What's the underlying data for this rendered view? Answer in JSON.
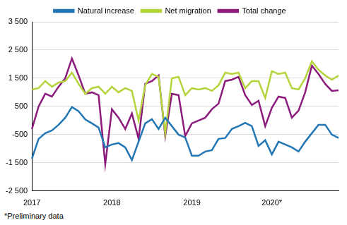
{
  "chart_data": {
    "type": "line",
    "categories": [
      "2017",
      null,
      null,
      null,
      null,
      null,
      null,
      null,
      null,
      null,
      null,
      null,
      "2018",
      null,
      null,
      null,
      null,
      null,
      null,
      null,
      null,
      null,
      null,
      null,
      "2019",
      null,
      null,
      null,
      null,
      null,
      null,
      null,
      null,
      null,
      null,
      null,
      "2020*",
      null,
      null,
      null,
      null,
      null,
      null,
      null,
      null,
      null,
      null
    ],
    "series": [
      {
        "name": "Natural increase",
        "color": "#2277b4",
        "values": [
          -1350,
          -650,
          -450,
          -350,
          -150,
          100,
          480,
          330,
          40,
          -100,
          -250,
          -950,
          -850,
          -800,
          -950,
          -1400,
          -750,
          -100,
          50,
          -300,
          100,
          -200,
          -500,
          -600,
          -1250,
          -1250,
          -1100,
          -1050,
          -650,
          -620,
          -300,
          -200,
          -80,
          -200,
          -900,
          -700,
          -1200,
          -750,
          -850,
          -950,
          -1100,
          -750,
          -450,
          -150,
          -150,
          -500,
          -620
        ]
      },
      {
        "name": "Net migration",
        "color": "#b4d43c",
        "values": [
          1100,
          1150,
          1400,
          1200,
          1350,
          1400,
          1700,
          1300,
          950,
          1150,
          1200,
          950,
          1200,
          1000,
          1150,
          1050,
          0,
          1250,
          1650,
          1550,
          -450,
          1500,
          1550,
          900,
          1150,
          1100,
          1150,
          1050,
          1250,
          1700,
          1650,
          1700,
          1150,
          1400,
          1400,
          800,
          1750,
          1650,
          1700,
          1150,
          1100,
          1500,
          2100,
          1800,
          1600,
          1450,
          1600
        ]
      },
      {
        "name": "Total change",
        "color": "#8c1c7c",
        "values": [
          -300,
          500,
          950,
          850,
          1200,
          1500,
          2200,
          1600,
          950,
          1000,
          900,
          -1550,
          400,
          100,
          -300,
          250,
          -650,
          1300,
          1400,
          1600,
          -550,
          950,
          900,
          -550,
          -100,
          0,
          100,
          400,
          600,
          1400,
          1450,
          1550,
          900,
          550,
          700,
          -200,
          450,
          850,
          800,
          100,
          350,
          1000,
          1950,
          1650,
          1300,
          1050,
          1070
        ]
      }
    ],
    "ylim": [
      -2500,
      3500
    ],
    "yticks": [
      {
        "value": -2500,
        "label": "-2 500"
      },
      {
        "value": -1500,
        "label": "-1 500"
      },
      {
        "value": -500,
        "label": "-500"
      },
      {
        "value": 500,
        "label": "500"
      },
      {
        "value": 1500,
        "label": "1 500"
      },
      {
        "value": 2500,
        "label": "2 500"
      },
      {
        "value": 3500,
        "label": "3 500"
      }
    ],
    "grid": true,
    "legend": "top",
    "annotations": [
      "*Preliminary data"
    ]
  }
}
